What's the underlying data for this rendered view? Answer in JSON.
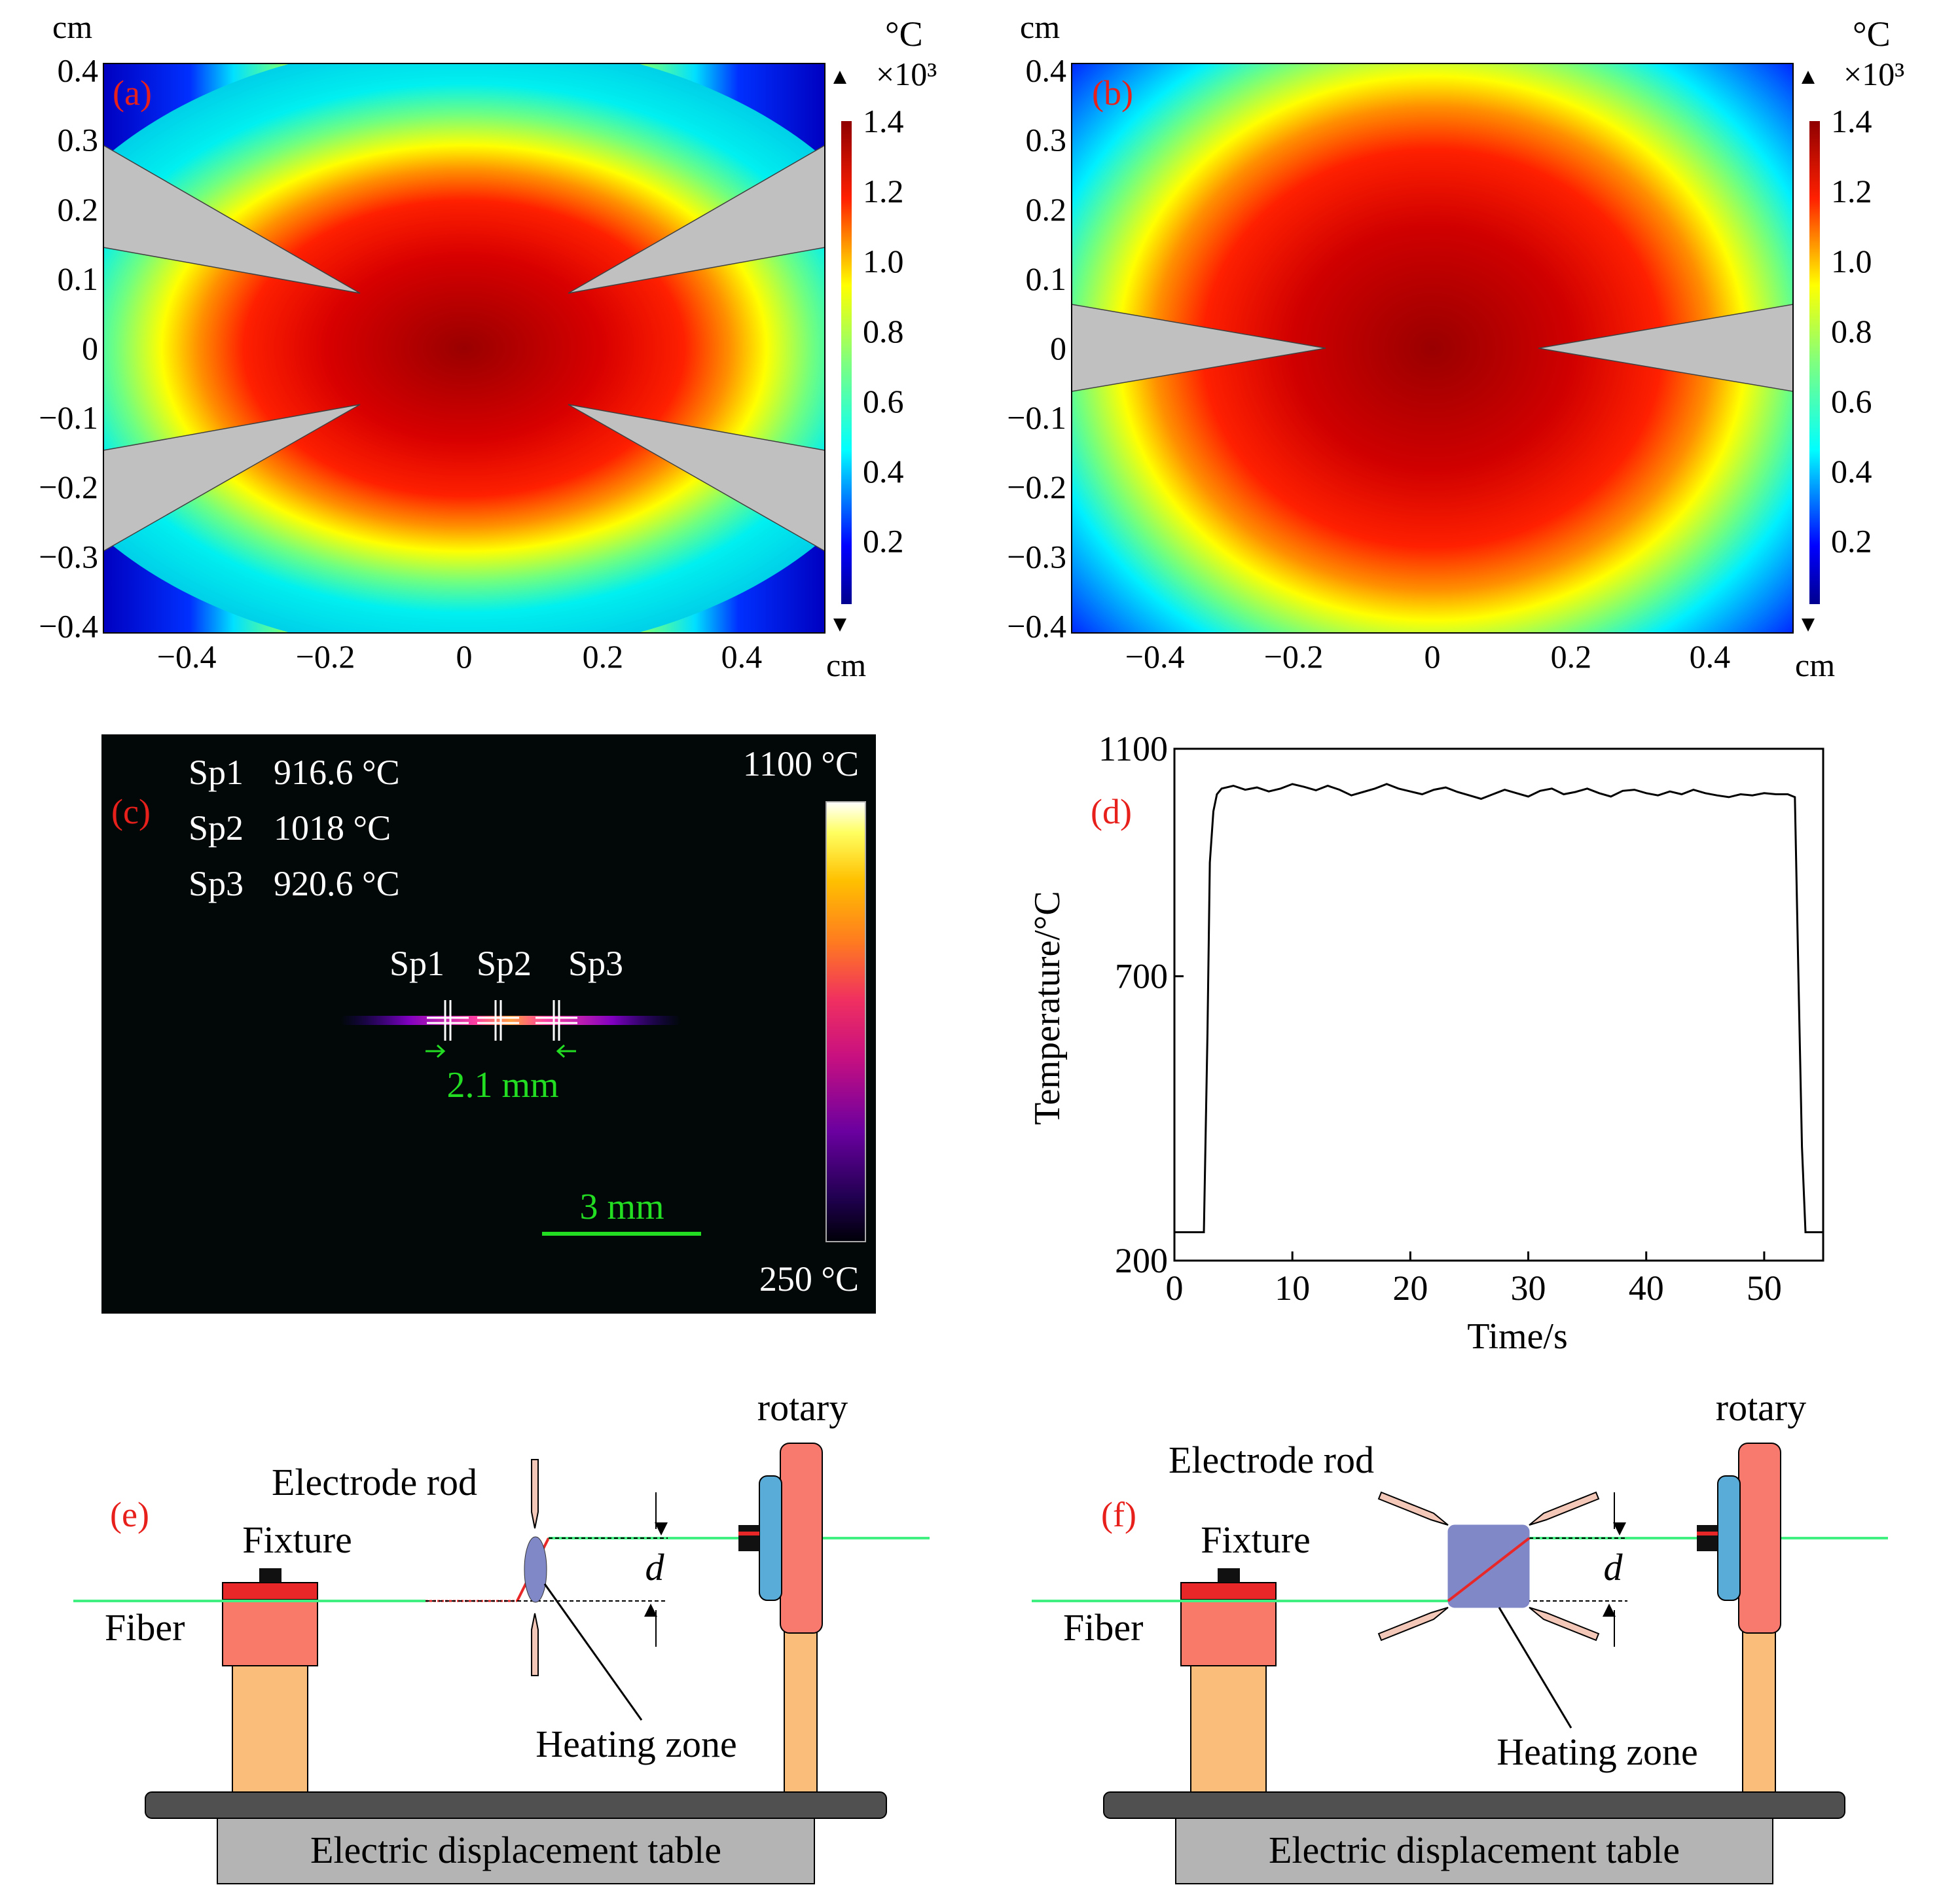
{
  "panel_labels": {
    "a": "(a)",
    "b": "(b)",
    "c": "(c)",
    "d": "(d)",
    "e": "(e)",
    "f": "(f)"
  },
  "colors": {
    "label_red": "#e8201c",
    "green": "#22dd22",
    "fiber": "#40f080",
    "fixture_red": "#e82828",
    "fixture_body": "#fa7a6a",
    "post": "#fbbe7a",
    "table_dark": "#505050",
    "table_gray": "#b4b4b4",
    "rotary_red": "#f87a6e",
    "rotary_blue": "#5aacd8",
    "heat_blob": "#8088c8",
    "electrode_gray": "#c4c4c4"
  },
  "heatmap": {
    "unit_cm": "cm",
    "unit_temp": "°C",
    "exponent": "×10³",
    "colorbar_ticks": [
      "1.4",
      "1.2",
      "1.0",
      "0.8",
      "0.6",
      "0.4",
      "0.2"
    ],
    "colorbar_tick_values": [
      1.4,
      1.2,
      1.0,
      0.8,
      0.6,
      0.4,
      0.2
    ],
    "y_ticks": [
      "0.4",
      "0.3",
      "0.2",
      "0.1",
      "0",
      "−0.1",
      "−0.2",
      "−0.3",
      "−0.4"
    ],
    "y_tick_values": [
      0.4,
      0.3,
      0.2,
      0.1,
      0,
      -0.1,
      -0.2,
      -0.3,
      -0.4
    ],
    "x_ticks": [
      "−0.4",
      "−0.2",
      "0",
      "0.2",
      "0.4"
    ],
    "x_tick_values": [
      -0.4,
      -0.2,
      0,
      0.2,
      0.4
    ],
    "x_range": [
      -0.52,
      0.52
    ],
    "y_range": [
      -0.41,
      0.41
    ],
    "colorbar_range": [
      0.02,
      1.4
    ]
  },
  "thermal": {
    "readings": [
      {
        "name": "Sp1",
        "value": "916.6 °C"
      },
      {
        "name": "Sp2",
        "value": "1018 °C"
      },
      {
        "name": "Sp3",
        "value": "920.6 °C"
      }
    ],
    "markers": [
      "Sp1",
      "Sp2",
      "Sp3"
    ],
    "scale_max": "1100 °C",
    "scale_min": "250 °C",
    "gap": "2.1 mm",
    "scalebar": "3 mm"
  },
  "chart_data": {
    "type": "line",
    "xlabel": "Time/s",
    "ylabel": "Temperature/°C",
    "xlim": [
      0,
      55
    ],
    "ylim": [
      200,
      1100
    ],
    "x_ticks": [
      0,
      10,
      20,
      30,
      40,
      50
    ],
    "y_ticks": [
      200,
      700,
      1100
    ],
    "series": [
      {
        "x": [
          0,
          2.5,
          2.8,
          3.0,
          3.3,
          3.6,
          4,
          5,
          6,
          7,
          8,
          9,
          10,
          11,
          12,
          13,
          14,
          15,
          16,
          17,
          18,
          19,
          20,
          21,
          22,
          23,
          24,
          25,
          26,
          27,
          28,
          29,
          30,
          31,
          32,
          33,
          34,
          35,
          36,
          37,
          38,
          39,
          40,
          41,
          42,
          43,
          44,
          45,
          46,
          47,
          48,
          49,
          50,
          51,
          52,
          52.6,
          52.9,
          53.2,
          53.5,
          55
        ],
        "y": [
          250,
          250,
          600,
          900,
          990,
          1020,
          1030,
          1035,
          1028,
          1032,
          1025,
          1030,
          1038,
          1033,
          1027,
          1035,
          1028,
          1018,
          1024,
          1030,
          1038,
          1030,
          1025,
          1020,
          1028,
          1032,
          1024,
          1018,
          1012,
          1020,
          1028,
          1022,
          1016,
          1026,
          1030,
          1020,
          1024,
          1030,
          1022,
          1016,
          1026,
          1028,
          1022,
          1018,
          1025,
          1020,
          1028,
          1022,
          1018,
          1015,
          1020,
          1018,
          1022,
          1020,
          1020,
          1015,
          700,
          400,
          250,
          250
        ]
      }
    ]
  },
  "setup_e": {
    "rotary": "rotary",
    "electrode": "Electrode rod",
    "fixture": "Fixture",
    "fiber": "Fiber",
    "d": "d",
    "heating": "Heating zone",
    "table": "Electric displacement table"
  },
  "setup_f": {
    "rotary": "rotary",
    "electrode": "Electrode rod",
    "fixture": "Fixture",
    "fiber": "Fiber",
    "d": "d",
    "heating": "Heating zone",
    "table": "Electric displacement table"
  }
}
